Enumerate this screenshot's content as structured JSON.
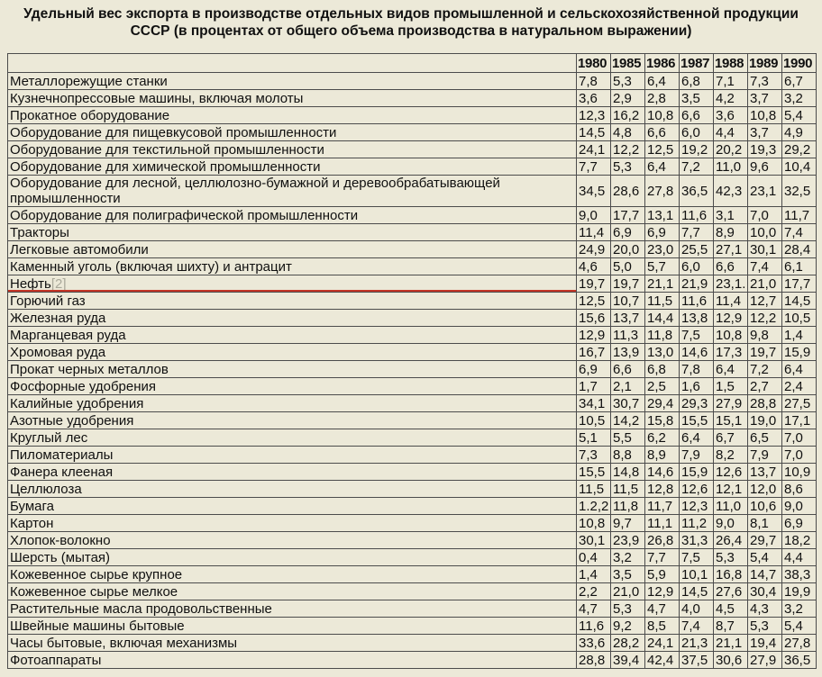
{
  "title": "Удельный вес экспорта в производстве отдельных видов промышленной и сельскохозяйственной продукции СССР (в процентах от общего объема производства в натуральном выражении)",
  "colors": {
    "background": "#ece9d8",
    "table_border": "#4c4c4c",
    "text": "#101010",
    "footnote_ref": "#aaa99a",
    "annotation_red": "#c43526"
  },
  "annotation": {
    "type": "red-underline",
    "target_row": "Нефть"
  },
  "table": {
    "corner_header": "",
    "year_headers": [
      "1980",
      "1985",
      "1986",
      "1987",
      "1988",
      "1989",
      "1990"
    ],
    "rows": [
      {
        "label": "Металлорежущие станки",
        "values": [
          "7,8",
          "5,3",
          "6,4",
          "6,8",
          "7,1",
          "7,3",
          "6,7"
        ]
      },
      {
        "label": "Кузнечнопрессовые машины, включая молоты",
        "values": [
          "3,6",
          "2,9",
          "2,8",
          "3,5",
          "4,2",
          "3,7",
          "3,2"
        ]
      },
      {
        "label": "Прокатное оборудование",
        "values": [
          "12,3",
          "16,2",
          "10,8",
          "6,6",
          "3,6",
          "10,8",
          "5,4"
        ]
      },
      {
        "label": "Оборудование для пищевкусовой промышленности",
        "values": [
          "14,5",
          "4,8",
          "6,6",
          "6,0",
          "4,4",
          "3,7",
          "4,9"
        ]
      },
      {
        "label": "Оборудование для текстильной промышленности",
        "values": [
          "24,1",
          "12,2",
          "12,5",
          "19,2",
          "20,2",
          "19,3",
          "29,2"
        ]
      },
      {
        "label": "Оборудование для химической промышленности",
        "values": [
          "7,7",
          "5,3",
          "6,4",
          "7,2",
          "11,0",
          "9,6",
          "10,4"
        ]
      },
      {
        "label": "Оборудование для лесной, целлюлозно-бумажной и деревообрабатывающей промышленности",
        "values": [
          "34,5",
          "28,6",
          "27,8",
          "36,5",
          "42,3",
          "23,1",
          "32,5"
        ]
      },
      {
        "label": "Оборудование для полиграфической промышленности",
        "values": [
          "9,0",
          "17,7",
          "13,1",
          "11,6",
          "3,1",
          "7,0",
          "11,7"
        ]
      },
      {
        "label": "Тракторы",
        "values": [
          "11,4",
          "6,9",
          "6,9",
          "7,7",
          "8,9",
          "10,0",
          "7,4"
        ]
      },
      {
        "label": "Легковые автомобили",
        "values": [
          "24,9",
          "20,0",
          "23,0",
          "25,5",
          "27,1",
          "30,1",
          "28,4"
        ]
      },
      {
        "label": "Каменный уголь (включая шихту) и антрацит",
        "values": [
          "4,6",
          "5,0",
          "5,7",
          "6,0",
          "6,6",
          "7,4",
          "6,1"
        ]
      },
      {
        "label": "Нефть",
        "footnote": "[2]",
        "underline_annotation": true,
        "values": [
          "19,7",
          "19,7",
          "21,1",
          "21,9",
          "23,1.",
          "21,0",
          "17,7"
        ]
      },
      {
        "label": "Горючий газ",
        "values": [
          "12,5",
          "10,7",
          "11,5",
          "11,6",
          "11,4",
          "12,7",
          "14,5"
        ]
      },
      {
        "label": "Железная руда",
        "values": [
          "15,6",
          "13,7",
          "14,4",
          "13,8",
          "12,9",
          "12,2",
          "10,5"
        ]
      },
      {
        "label": "Марганцевая руда",
        "values": [
          "12,9",
          "11,3",
          "11,8",
          "7,5",
          "10,8",
          "9,8",
          "1,4"
        ]
      },
      {
        "label": "Хромовая руда",
        "values": [
          "16,7",
          "13,9",
          "13,0",
          "14,6",
          "17,3",
          "19,7",
          "15,9"
        ]
      },
      {
        "label": "Прокат черных металлов",
        "values": [
          "6,9",
          "6,6",
          "6,8",
          "7,8",
          "6,4",
          "7,2",
          "6,4"
        ]
      },
      {
        "label": "Фосфорные удобрения",
        "values": [
          "1,7",
          "2,1",
          "2,5",
          "1,6",
          "1,5",
          "2,7",
          "2,4"
        ]
      },
      {
        "label": "Калийные удобрения",
        "values": [
          "34,1",
          "30,7",
          "29,4",
          "29,3",
          "27,9",
          "28,8",
          "27,5"
        ]
      },
      {
        "label": "Азотные удобрения",
        "values": [
          "10,5",
          "14,2",
          "15,8",
          "15,5",
          "15,1",
          "19,0",
          "17,1"
        ]
      },
      {
        "label": "Круглый лес",
        "values": [
          "5,1",
          "5,5",
          "6,2",
          "6,4",
          "6,7",
          "6,5",
          "7,0"
        ]
      },
      {
        "label": "Пиломатериалы",
        "values": [
          "7,3",
          "8,8",
          "8,9",
          "7,9",
          "8,2",
          "7,9",
          "7,0"
        ]
      },
      {
        "label": "Фанера клееная",
        "values": [
          "15,5",
          "14,8",
          "14,6",
          "15,9",
          "12,6",
          "13,7",
          "10,9"
        ]
      },
      {
        "label": "Целлюлоза",
        "values": [
          "11,5",
          "11,5",
          "12,8",
          "12,6",
          "12,1",
          "12,0",
          "8,6"
        ]
      },
      {
        "label": "Бумага",
        "values": [
          "1.2,2",
          "11,8",
          "11,7",
          "12,3",
          "11,0",
          "10,6",
          "9,0"
        ]
      },
      {
        "label": "Картон",
        "values": [
          "10,8",
          "9,7",
          "11,1",
          "11,2",
          "9,0",
          "8,1",
          "6,9"
        ]
      },
      {
        "label": "Хлопок-волокно",
        "values": [
          "30,1",
          "23,9",
          "26,8",
          "31,3",
          "26,4",
          "29,7",
          "18,2"
        ]
      },
      {
        "label": "Шерсть (мытая)",
        "values": [
          "0,4",
          "3,2",
          "7,7",
          "7,5",
          "5,3",
          "5,4",
          "4,4"
        ]
      },
      {
        "label": "Кожевенное сырье крупное",
        "values": [
          "1,4",
          "3,5",
          "5,9",
          "10,1",
          "16,8",
          "14,7",
          "38,3"
        ]
      },
      {
        "label": "Кожевенное сырье мелкое",
        "values": [
          "2,2",
          "21,0",
          "12,9",
          "14,5",
          "27,6",
          "30,4",
          "19,9"
        ]
      },
      {
        "label": "Растительные масла продовольственные",
        "values": [
          "4,7",
          "5,3",
          "4,7",
          "4,0",
          "4,5",
          "4,3",
          "3,2"
        ]
      },
      {
        "label": "Швейные машины бытовые",
        "values": [
          "11,6",
          "9,2",
          "8,5",
          "7,4",
          "8,7",
          "5,3",
          "5,4"
        ]
      },
      {
        "label": "Часы бытовые, включая механизмы",
        "values": [
          "33,6",
          "28,2",
          "24,1",
          "21,3",
          "21,1",
          "19,4",
          "27,8"
        ]
      },
      {
        "label": "Фотоаппараты",
        "values": [
          "28,8",
          "39,4",
          "42,4",
          "37,5",
          "30,6",
          "27,9",
          "36,5"
        ]
      }
    ]
  }
}
